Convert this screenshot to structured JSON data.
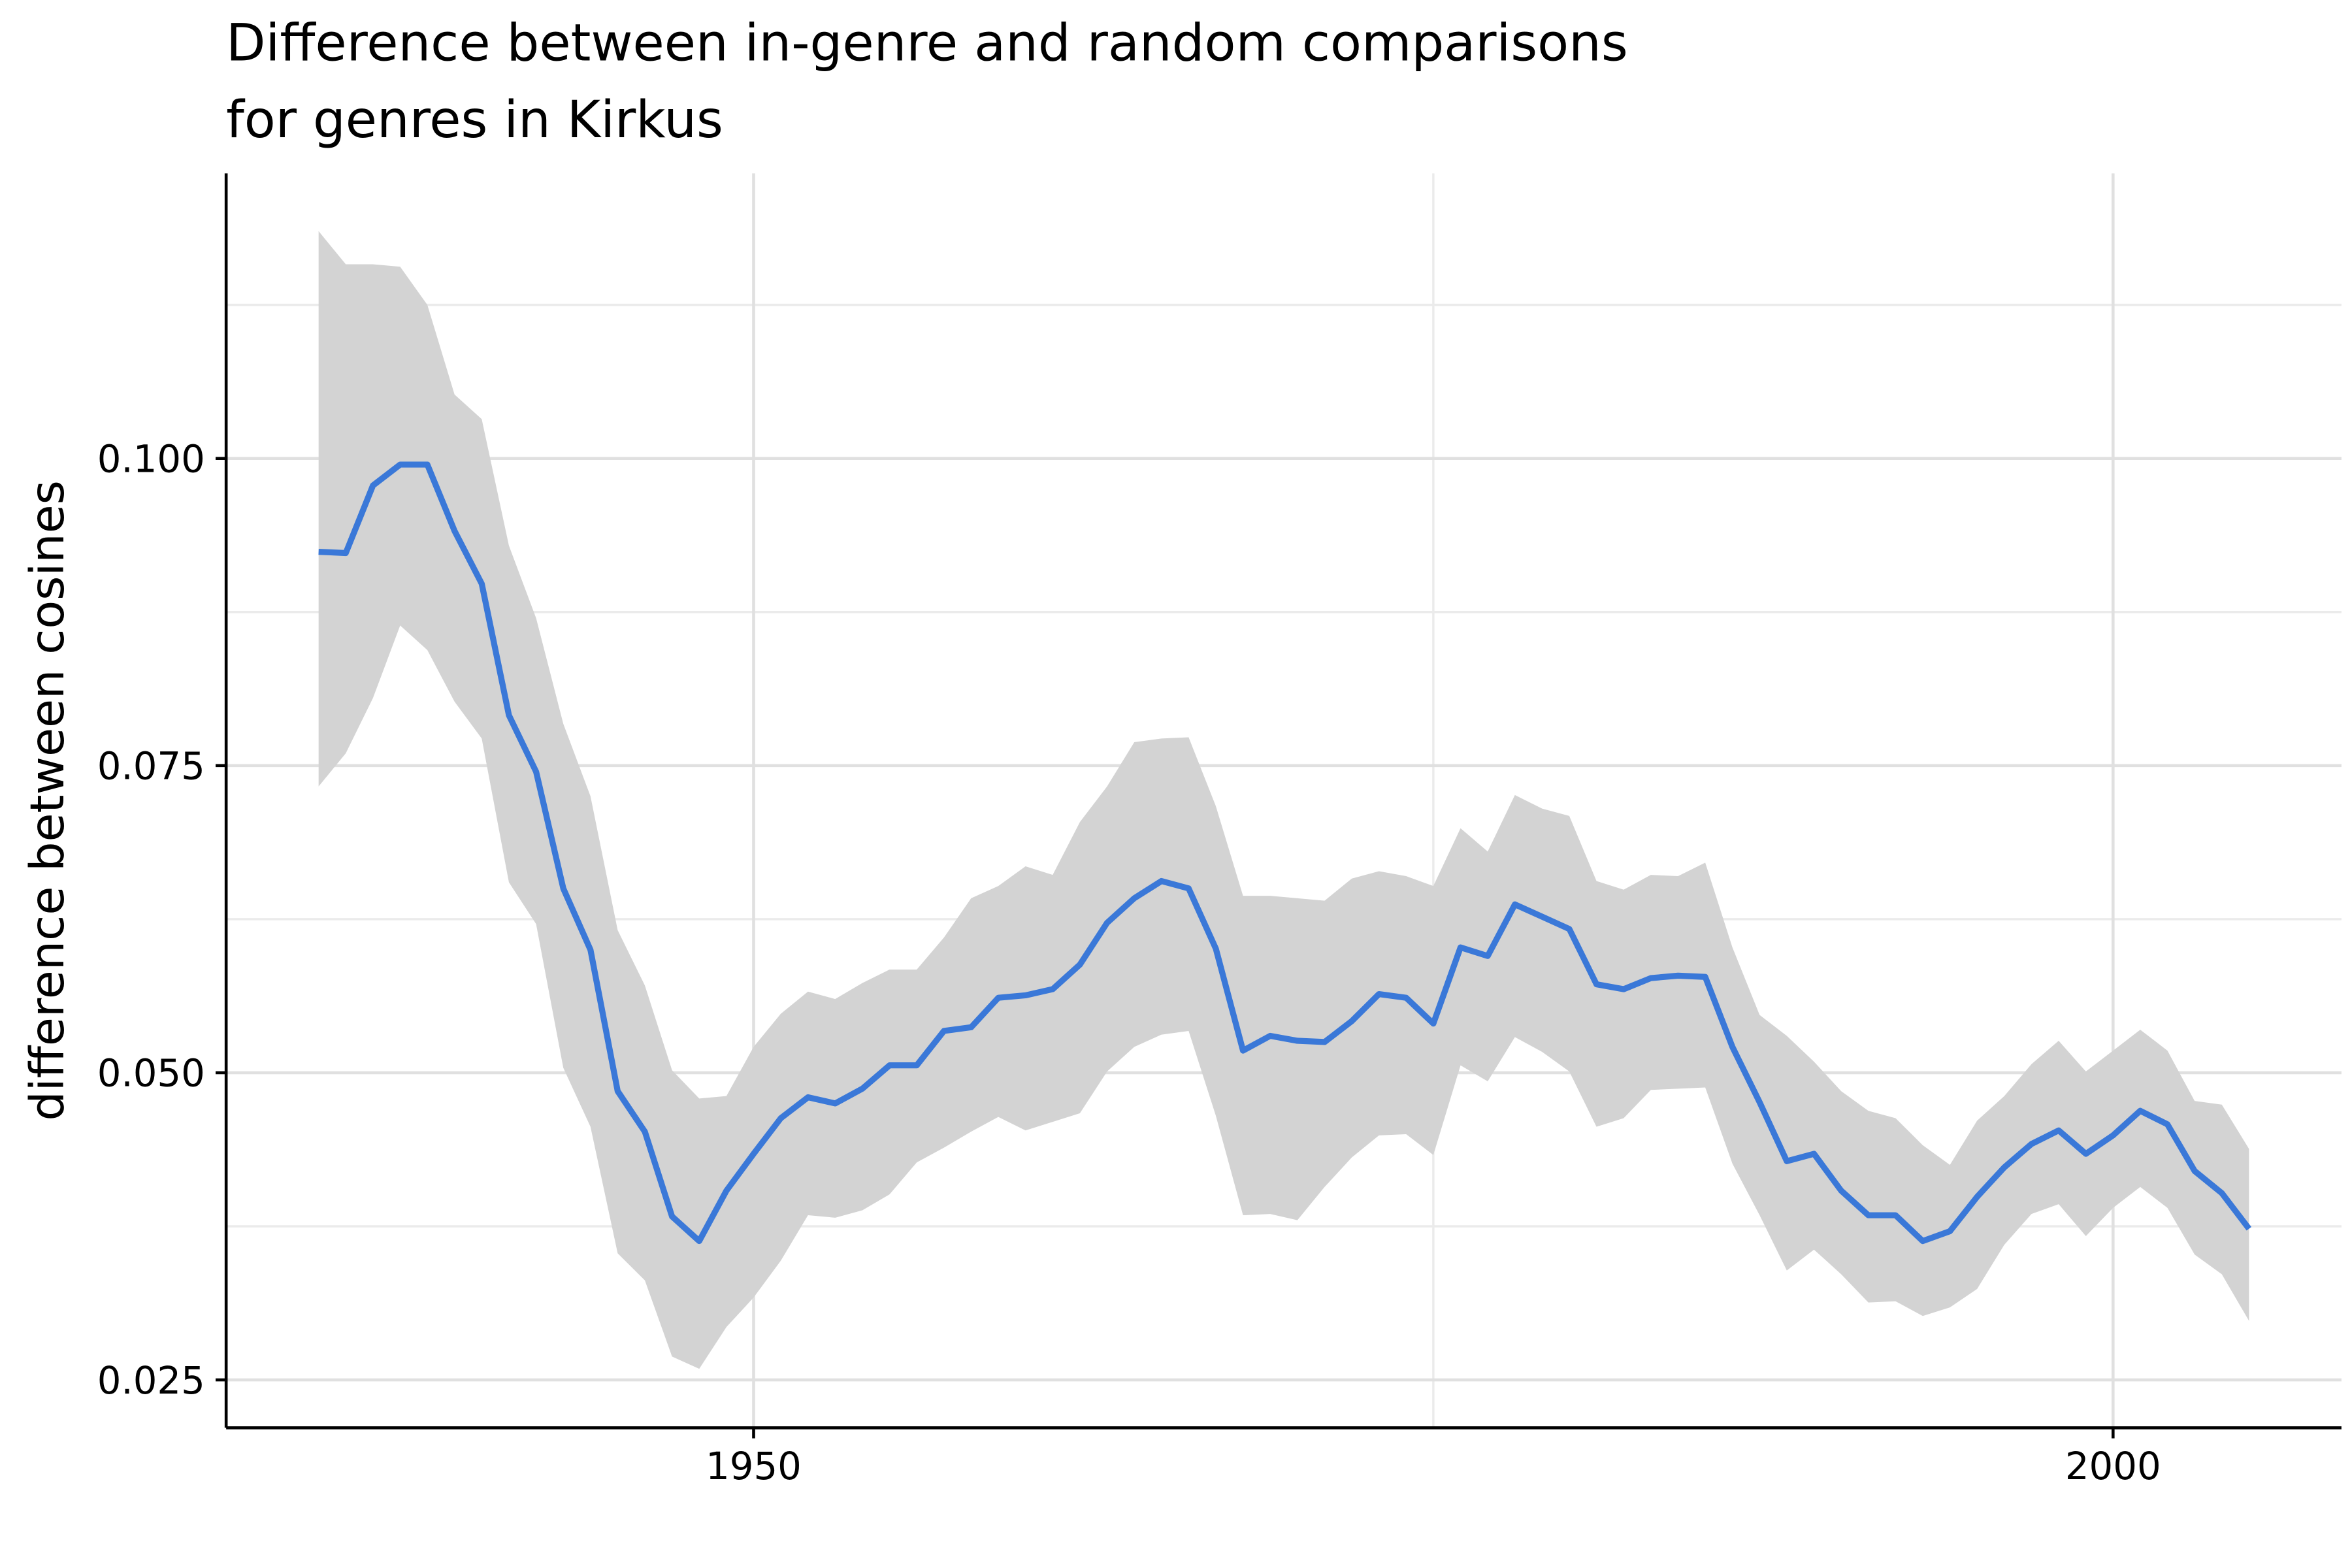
{
  "chart_data": {
    "type": "line-band",
    "title": [
      "Difference between in-genre and random comparisons",
      "for genres in Kirkus"
    ],
    "y_label": "difference between cosines",
    "x": [
      1934,
      1935,
      1936,
      1937,
      1938,
      1939,
      1940,
      1941,
      1942,
      1943,
      1944,
      1945,
      1946,
      1947,
      1948,
      1949,
      1950,
      1951,
      1952,
      1953,
      1954,
      1955,
      1956,
      1957,
      1958,
      1959,
      1960,
      1961,
      1962,
      1963,
      1964,
      1965,
      1966,
      1967,
      1968,
      1969,
      1970,
      1971,
      1972,
      1973,
      1974,
      1975,
      1976,
      1977,
      1978,
      1979,
      1980,
      1981,
      1982,
      1983,
      1984,
      1985,
      1986,
      1987,
      1988,
      1989,
      1990,
      1991,
      1992,
      1993,
      1994,
      1995,
      1996,
      1997,
      1998,
      1999,
      2000,
      2001,
      2002,
      2003,
      2004,
      2005
    ],
    "series": [
      {
        "color": "#3a78d8",
        "values": [
          0.0924,
          0.0923,
          0.0978,
          0.0995,
          0.0995,
          0.0941,
          0.0898,
          0.0791,
          0.0745,
          0.065,
          0.06,
          0.0485,
          0.0452,
          0.0383,
          0.0363,
          0.0404,
          0.0434,
          0.0463,
          0.048,
          0.0475,
          0.0487,
          0.0506,
          0.0506,
          0.0534,
          0.0537,
          0.0561,
          0.0563,
          0.0568,
          0.0588,
          0.0622,
          0.0642,
          0.0656,
          0.065,
          0.0601,
          0.0518,
          0.053,
          0.0526,
          0.0525,
          0.0542,
          0.0564,
          0.0561,
          0.054,
          0.0602,
          0.0595,
          0.0637,
          0.0627,
          0.0617,
          0.0572,
          0.0568,
          0.0577,
          0.0579,
          0.0578,
          0.0521,
          0.0476,
          0.0428,
          0.0434,
          0.0404,
          0.0384,
          0.0384,
          0.0363,
          0.0371,
          0.0399,
          0.0423,
          0.0442,
          0.0453,
          0.0434,
          0.0449,
          0.0469,
          0.0458,
          0.042,
          0.0402,
          0.0373
        ],
        "upper": [
          0.1185,
          0.1158,
          0.1158,
          0.1156,
          0.1125,
          0.1052,
          0.1032,
          0.0929,
          0.087,
          0.0784,
          0.0725,
          0.0616,
          0.0571,
          0.0502,
          0.0479,
          0.0481,
          0.0521,
          0.0548,
          0.0566,
          0.056,
          0.0573,
          0.0584,
          0.0584,
          0.061,
          0.0642,
          0.0652,
          0.0668,
          0.0661,
          0.0704,
          0.0733,
          0.0769,
          0.0772,
          0.0773,
          0.0717,
          0.0644,
          0.0644,
          0.0642,
          0.064,
          0.0658,
          0.0664,
          0.066,
          0.0652,
          0.0699,
          0.068,
          0.0726,
          0.0715,
          0.0709,
          0.0656,
          0.0649,
          0.0661,
          0.066,
          0.0671,
          0.0602,
          0.0547,
          0.053,
          0.0509,
          0.0485,
          0.0469,
          0.0463,
          0.0441,
          0.0425,
          0.0461,
          0.0481,
          0.0507,
          0.0526,
          0.0501,
          0.0518,
          0.0535,
          0.0518,
          0.0477,
          0.0474,
          0.0438
        ],
        "lower": [
          0.0733,
          0.076,
          0.0805,
          0.0864,
          0.0844,
          0.0802,
          0.0772,
          0.0655,
          0.0621,
          0.0504,
          0.0456,
          0.0353,
          0.0331,
          0.0269,
          0.0259,
          0.0293,
          0.0317,
          0.0347,
          0.0384,
          0.0382,
          0.0388,
          0.0401,
          0.0427,
          0.0439,
          0.0452,
          0.0464,
          0.0453,
          0.046,
          0.0467,
          0.0501,
          0.0521,
          0.0531,
          0.0534,
          0.0465,
          0.0384,
          0.0385,
          0.038,
          0.0407,
          0.0431,
          0.0449,
          0.045,
          0.0433,
          0.0506,
          0.0493,
          0.0529,
          0.0517,
          0.0501,
          0.0456,
          0.0463,
          0.0486,
          0.0487,
          0.0488,
          0.0426,
          0.0384,
          0.0339,
          0.0356,
          0.0336,
          0.0313,
          0.0314,
          0.0302,
          0.0309,
          0.0324,
          0.036,
          0.0385,
          0.0393,
          0.0367,
          0.039,
          0.0407,
          0.039,
          0.0352,
          0.0336,
          0.0298
        ],
        "band_color": "#d3d3d3"
      }
    ],
    "xlim": [
      1930.6,
      2008.4
    ],
    "ylim": [
      0.0211,
      0.1232
    ],
    "xticks": [
      1950,
      2000
    ],
    "yticks": [
      0.025,
      {
        "value": 0.05,
        "label": "0.050"
      },
      0.075,
      {
        "value": 0.1,
        "label": "0.100"
      }
    ],
    "x_minor_grid": [
      1975
    ],
    "y_minor_grid": [
      0.0375,
      0.0625,
      0.0875,
      0.1125
    ],
    "grid": true
  }
}
